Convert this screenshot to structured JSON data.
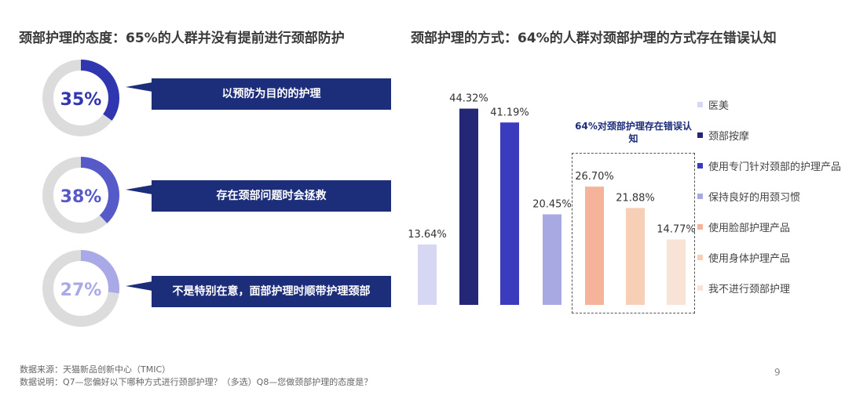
{
  "left_title": "颈部护理的态度：65%的人群并没有提前进行颈部防护",
  "right_title": "颈部护理的方式：64%的人群对颈部护理的方式存在错误认知",
  "attitudes": [
    {
      "percent_label": "35%",
      "value": 35,
      "color": "#2f36b0",
      "label": "以预防为目的的护理"
    },
    {
      "percent_label": "38%",
      "value": 38,
      "color": "#5659c8",
      "label": "存在颈部问题时会拯救"
    },
    {
      "percent_label": "27%",
      "value": 27,
      "color": "#a8a9e6",
      "label": "不是特别在意，面部护理时顺带护理颈部"
    }
  ],
  "chart_data": {
    "type": "bar",
    "categories": [
      "医美",
      "颈部按摩",
      "使用专门针对颈部的护理产品",
      "保持良好的用颈习惯",
      "使用脸部护理产品",
      "使用身体护理产品",
      "我不进行颈部护理"
    ],
    "values": [
      13.64,
      44.32,
      41.19,
      20.45,
      26.7,
      21.88,
      14.77
    ],
    "value_labels": [
      "13.64%",
      "44.32%",
      "41.19%",
      "20.45%",
      "26.70%",
      "21.88%",
      "14.77%"
    ],
    "colors": [
      "#d6d7f2",
      "#232775",
      "#3a3bbd",
      "#a8a8e2",
      "#f5b49a",
      "#f7cfb6",
      "#f8e3d6"
    ],
    "highlight_label": "64%对颈部护理存在错误认知",
    "legend_position": "right",
    "grid": false
  },
  "footer": {
    "source": "数据来源：天猫新品创新中心（TMIC）",
    "note": "数据说明：Q7—您偏好以下哪种方式进行颈部护理？（多选）Q8—您做颈部护理的态度是？",
    "page": "9"
  }
}
